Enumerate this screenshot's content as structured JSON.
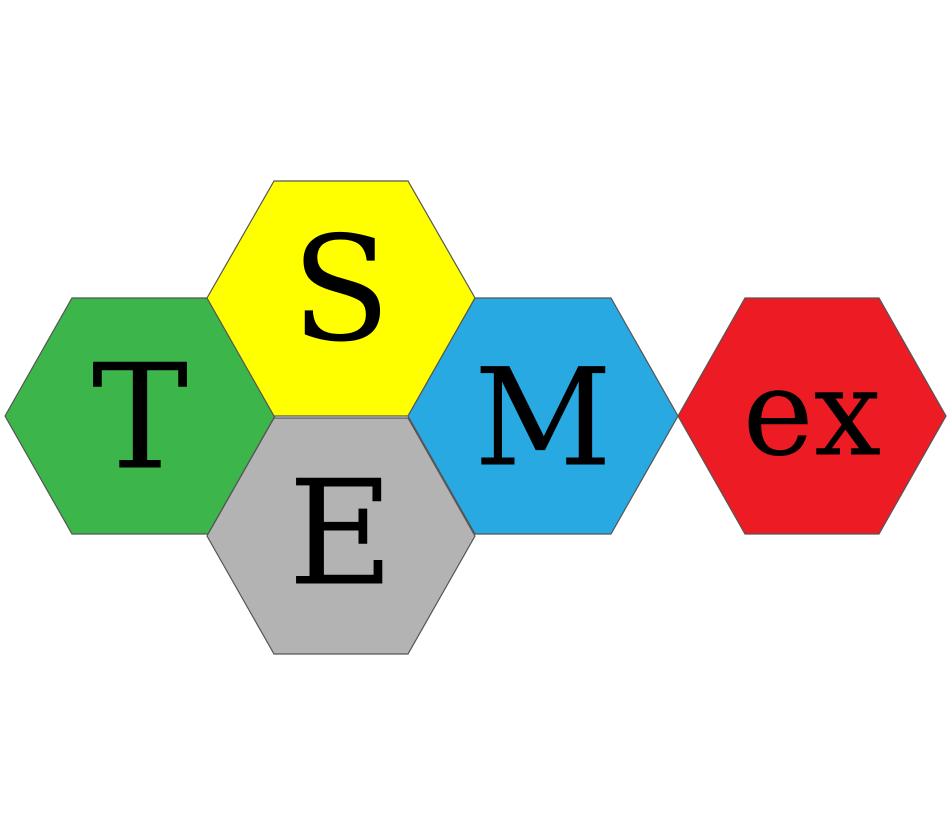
{
  "logo": {
    "tiles": [
      {
        "key": "t",
        "letter": "T",
        "color": "#3cb54a"
      },
      {
        "key": "s",
        "letter": "S",
        "color": "#ffff00"
      },
      {
        "key": "e",
        "letter": "E",
        "color": "#b3b3b3"
      },
      {
        "key": "m",
        "letter": "M",
        "color": "#29a9e1"
      },
      {
        "key": "ex",
        "letter": "ex",
        "color": "#ed1c24"
      }
    ]
  }
}
